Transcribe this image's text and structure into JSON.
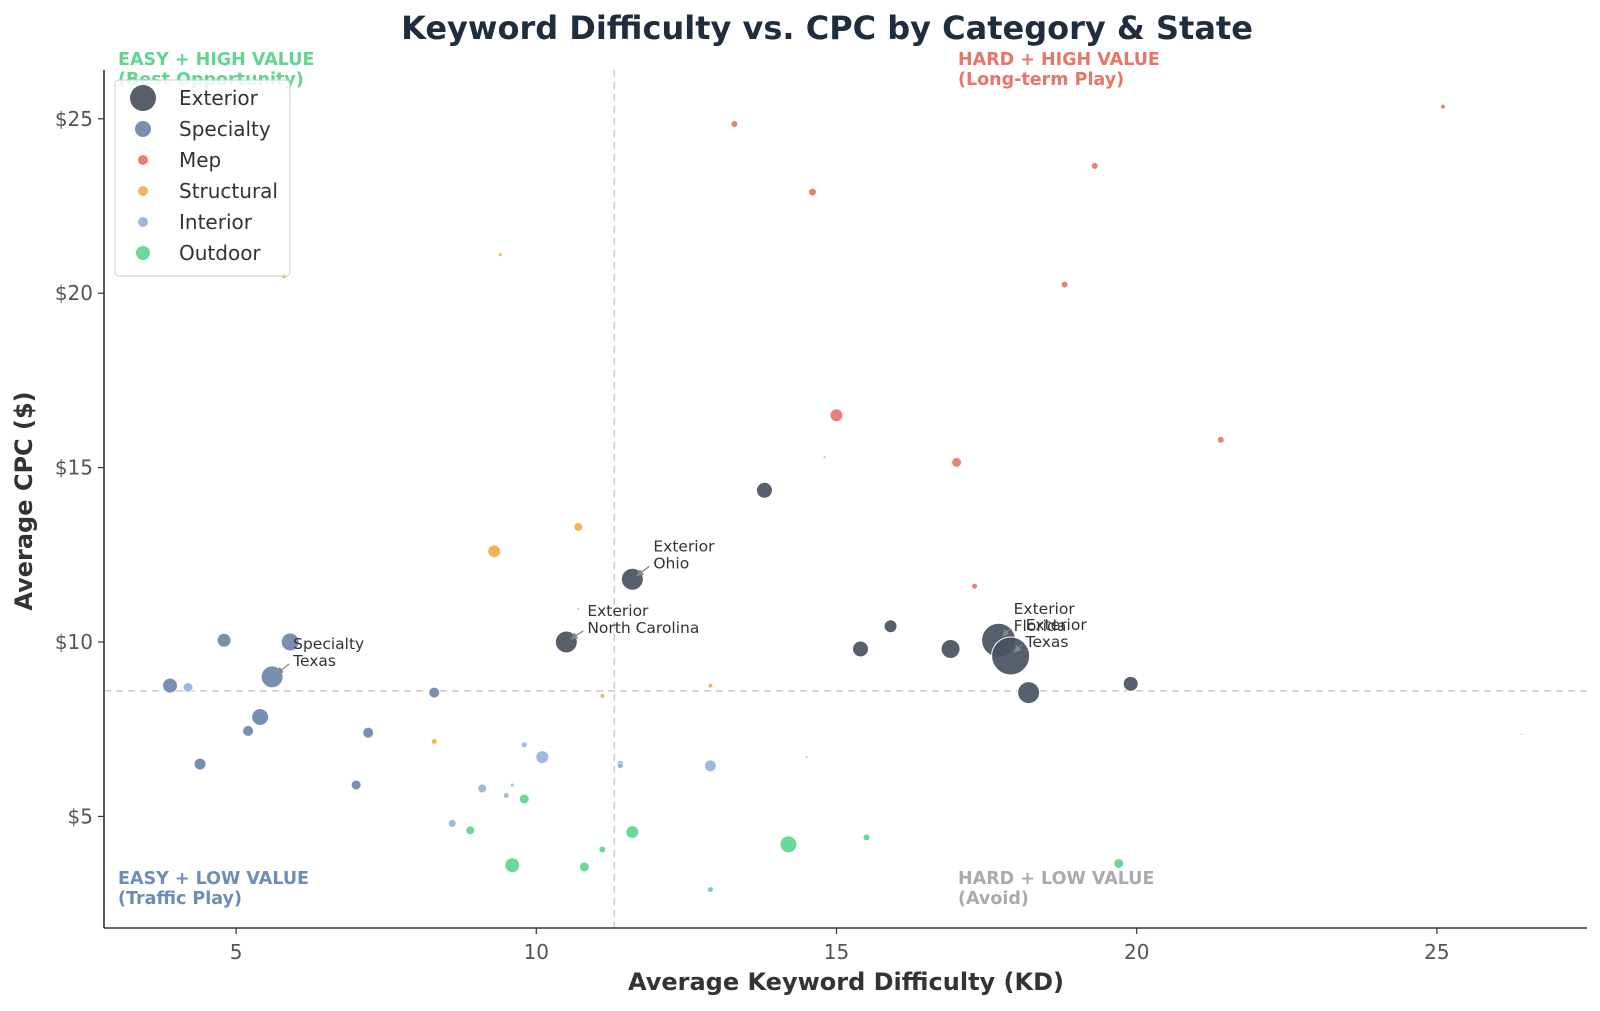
{
  "chart_data": {
    "type": "scatter",
    "title": "Keyword Difficulty vs. CPC by Category & State",
    "xlabel": "Average Keyword Difficulty (KD)",
    "ylabel": "Average CPC ($)",
    "xlim": [
      2.8,
      27.5
    ],
    "ylim": [
      1.8,
      26.4
    ],
    "x_ticks": [
      {
        "value": 5,
        "label": "5"
      },
      {
        "value": 10,
        "label": "10"
      },
      {
        "value": 15,
        "label": "15"
      },
      {
        "value": 20,
        "label": "20"
      },
      {
        "value": 25,
        "label": "25"
      }
    ],
    "y_ticks": [
      {
        "value": 5,
        "label": "$5"
      },
      {
        "value": 10,
        "label": "$10"
      },
      {
        "value": 15,
        "label": "$15"
      },
      {
        "value": 20,
        "label": "$20"
      },
      {
        "value": 25,
        "label": "$25"
      }
    ],
    "grid": false,
    "legend_position": "top-left",
    "point_size_encodes": "keyword volume (unlabeled)",
    "reference_lines": {
      "x": 11.3,
      "y": 8.6
    },
    "quadrant_labels": [
      {
        "text": [
          "EASY + HIGH VALUE",
          "(Best Opportunity)"
        ],
        "position": "top-left",
        "color": "#5fd68f"
      },
      {
        "text": [
          "HARD + HIGH VALUE",
          "(Long-term Play)"
        ],
        "position": "top-right",
        "color": "#e8756a"
      },
      {
        "text": [
          "EASY + LOW VALUE",
          "(Traffic Play)"
        ],
        "position": "bottom-left",
        "color": "#6d8db8"
      },
      {
        "text": [
          "HARD + LOW VALUE",
          "(Avoid)"
        ],
        "position": "bottom-right",
        "color": "#aaaaaa"
      }
    ],
    "series": [
      {
        "name": "Exterior",
        "color": "#4a5261",
        "points": [
          {
            "x": 10.5,
            "y": 10.0,
            "s": 11
          },
          {
            "x": 11.6,
            "y": 11.8,
            "s": 11
          },
          {
            "x": 13.8,
            "y": 14.35,
            "s": 8
          },
          {
            "x": 15.4,
            "y": 9.8,
            "s": 8
          },
          {
            "x": 15.9,
            "y": 10.45,
            "s": 6.5
          },
          {
            "x": 16.9,
            "y": 9.8,
            "s": 9.5
          },
          {
            "x": 17.7,
            "y": 10.05,
            "s": 17
          },
          {
            "x": 17.9,
            "y": 9.6,
            "s": 19
          },
          {
            "x": 18.2,
            "y": 8.55,
            "s": 11
          },
          {
            "x": 19.9,
            "y": 8.8,
            "s": 7.5
          }
        ]
      },
      {
        "name": "Specialty",
        "color": "#6e87ad",
        "points": [
          {
            "x": 3.9,
            "y": 8.75,
            "s": 7.5
          },
          {
            "x": 4.4,
            "y": 6.5,
            "s": 6
          },
          {
            "x": 4.8,
            "y": 10.05,
            "s": 7
          },
          {
            "x": 5.2,
            "y": 7.45,
            "s": 5.5
          },
          {
            "x": 5.4,
            "y": 7.85,
            "s": 8.5
          },
          {
            "x": 5.6,
            "y": 9.0,
            "s": 11
          },
          {
            "x": 5.9,
            "y": 10.0,
            "s": 9
          },
          {
            "x": 7.0,
            "y": 5.9,
            "s": 5
          },
          {
            "x": 7.2,
            "y": 7.4,
            "s": 5.5
          },
          {
            "x": 8.3,
            "y": 8.55,
            "s": 5.5
          },
          {
            "x": 11.4,
            "y": 6.5,
            "s": 3.5
          }
        ]
      },
      {
        "name": "Mep",
        "color": "#e8756a",
        "points": [
          {
            "x": 13.3,
            "y": 24.85,
            "s": 3.5
          },
          {
            "x": 14.6,
            "y": 22.9,
            "s": 4
          },
          {
            "x": 15.0,
            "y": 16.5,
            "s": 6.5
          },
          {
            "x": 17.0,
            "y": 15.15,
            "s": 5
          },
          {
            "x": 17.3,
            "y": 11.6,
            "s": 3
          },
          {
            "x": 18.8,
            "y": 20.25,
            "s": 3.5
          },
          {
            "x": 19.3,
            "y": 23.65,
            "s": 3.5
          },
          {
            "x": 21.4,
            "y": 15.8,
            "s": 3.5
          },
          {
            "x": 25.1,
            "y": 25.35,
            "s": 2.5
          }
        ]
      },
      {
        "name": "Structural",
        "color": "#f2ad4e",
        "points": [
          {
            "x": 5.8,
            "y": 20.5,
            "s": 3
          },
          {
            "x": 8.3,
            "y": 7.15,
            "s": 3
          },
          {
            "x": 9.3,
            "y": 12.6,
            "s": 6.5
          },
          {
            "x": 9.4,
            "y": 21.1,
            "s": 2
          },
          {
            "x": 10.7,
            "y": 13.3,
            "s": 4.5
          },
          {
            "x": 10.7,
            "y": 10.95,
            "s": 1.5
          },
          {
            "x": 11.1,
            "y": 8.45,
            "s": 2.5
          },
          {
            "x": 12.9,
            "y": 8.75,
            "s": 2.5
          },
          {
            "x": 14.5,
            "y": 6.7,
            "s": 1.5
          },
          {
            "x": 14.8,
            "y": 15.3,
            "s": 1.5
          }
        ]
      },
      {
        "name": "Interior",
        "color": "#97b3de",
        "points": [
          {
            "x": 4.2,
            "y": 8.7,
            "s": 5
          },
          {
            "x": 8.6,
            "y": 4.8,
            "s": 4
          },
          {
            "x": 9.1,
            "y": 5.8,
            "s": 4.5
          },
          {
            "x": 9.5,
            "y": 5.6,
            "s": 3
          },
          {
            "x": 9.6,
            "y": 5.9,
            "s": 2
          },
          {
            "x": 9.8,
            "y": 7.05,
            "s": 3
          },
          {
            "x": 10.1,
            "y": 6.7,
            "s": 6.5
          },
          {
            "x": 11.4,
            "y": 6.45,
            "s": 3
          },
          {
            "x": 12.9,
            "y": 6.45,
            "s": 6
          },
          {
            "x": 26.4,
            "y": 7.35,
            "s": 1.2
          }
        ]
      },
      {
        "name": "Outdoor",
        "color": "#5fd68f",
        "points": [
          {
            "x": 8.9,
            "y": 4.6,
            "s": 4.5
          },
          {
            "x": 9.6,
            "y": 3.6,
            "s": 7.5
          },
          {
            "x": 9.8,
            "y": 5.5,
            "s": 5
          },
          {
            "x": 10.8,
            "y": 3.55,
            "s": 5
          },
          {
            "x": 11.1,
            "y": 4.05,
            "s": 3.5
          },
          {
            "x": 11.6,
            "y": 4.55,
            "s": 6.5
          },
          {
            "x": 12.9,
            "y": 2.9,
            "s": 3
          },
          {
            "x": 14.2,
            "y": 4.2,
            "s": 8.5
          },
          {
            "x": 15.5,
            "y": 4.4,
            "s": 3.5
          },
          {
            "x": 19.7,
            "y": 3.65,
            "s": 5
          }
        ]
      }
    ],
    "annotations": [
      {
        "lines": [
          "Exterior",
          "Ohio"
        ],
        "x": 11.6,
        "y": 11.8,
        "tx": 11.95,
        "ty": 12.6
      },
      {
        "lines": [
          "Exterior",
          "North Carolina"
        ],
        "x": 10.5,
        "y": 10.0,
        "tx": 10.85,
        "ty": 10.75
      },
      {
        "lines": [
          "Specialty",
          "Texas"
        ],
        "x": 5.6,
        "y": 9.0,
        "tx": 5.95,
        "ty": 9.8
      },
      {
        "lines": [
          "Exterior",
          "Florida"
        ],
        "x": 17.7,
        "y": 10.05,
        "tx": 17.95,
        "ty": 10.8
      },
      {
        "lines": [
          "Exterior",
          "Texas"
        ],
        "x": 17.9,
        "y": 9.6,
        "tx": 18.15,
        "ty": 10.35
      }
    ]
  }
}
